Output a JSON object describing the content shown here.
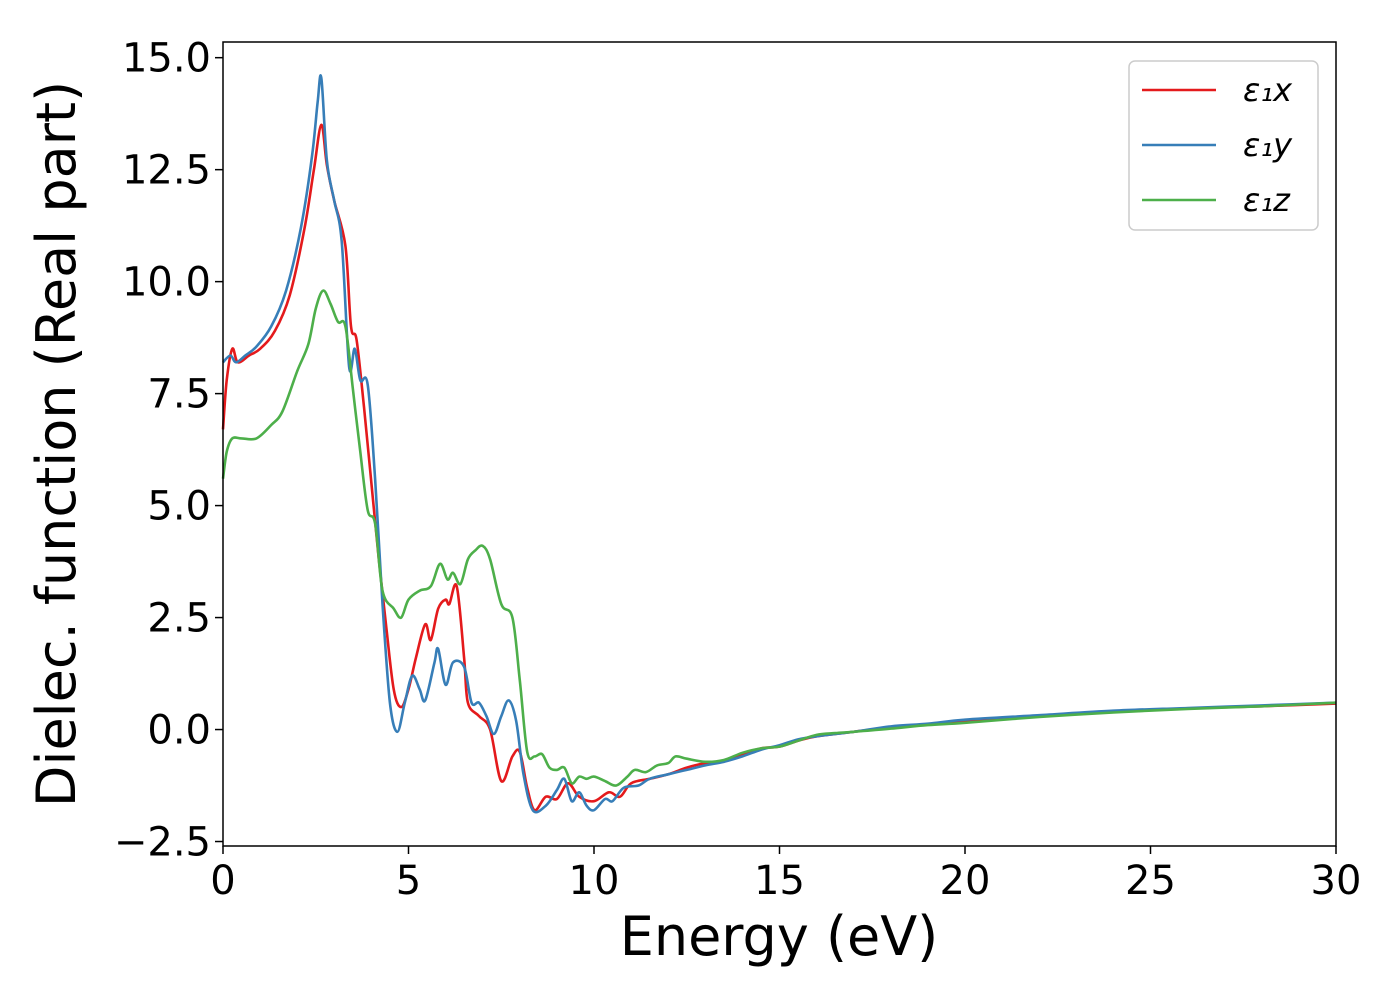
{
  "chart_data": {
    "type": "line",
    "xlabel": "Energy (eV)",
    "ylabel": "Dielec. function (Real part)",
    "xlim": [
      0,
      30
    ],
    "ylim": [
      -2.6,
      15.35
    ],
    "xticks": [
      0,
      5,
      10,
      15,
      20,
      25,
      30
    ],
    "xtick_labels": [
      "0",
      "5",
      "10",
      "15",
      "20",
      "25",
      "30"
    ],
    "yticks": [
      -2.5,
      0,
      2.5,
      5,
      7.5,
      10,
      12.5,
      15
    ],
    "ytick_labels": [
      "−2.5",
      "0.0",
      "2.5",
      "5.0",
      "7.5",
      "10.0",
      "12.5",
      "15.0"
    ],
    "grid": false,
    "legend_position": "top-right",
    "series": [
      {
        "name": "ε₁x",
        "color": "#e41a1c",
        "points": [
          [
            0,
            6.7
          ],
          [
            0.1,
            7.8
          ],
          [
            0.25,
            8.5
          ],
          [
            0.4,
            8.2
          ],
          [
            0.7,
            8.35
          ],
          [
            1.0,
            8.5
          ],
          [
            1.4,
            8.9
          ],
          [
            1.8,
            9.7
          ],
          [
            2.2,
            11.2
          ],
          [
            2.45,
            12.5
          ],
          [
            2.65,
            13.5
          ],
          [
            2.8,
            12.6
          ],
          [
            3.0,
            11.8
          ],
          [
            3.3,
            10.8
          ],
          [
            3.45,
            9.0
          ],
          [
            3.6,
            8.7
          ],
          [
            3.8,
            7.2
          ],
          [
            4.0,
            5.5
          ],
          [
            4.2,
            3.8
          ],
          [
            4.4,
            2.3
          ],
          [
            4.6,
            0.9
          ],
          [
            4.8,
            0.5
          ],
          [
            5.0,
            0.9
          ],
          [
            5.2,
            1.6
          ],
          [
            5.45,
            2.35
          ],
          [
            5.6,
            2.0
          ],
          [
            5.8,
            2.7
          ],
          [
            6.0,
            2.9
          ],
          [
            6.1,
            2.8
          ],
          [
            6.3,
            3.2
          ],
          [
            6.5,
            1.6
          ],
          [
            6.6,
            0.6
          ],
          [
            6.9,
            0.3
          ],
          [
            7.2,
            0.0
          ],
          [
            7.5,
            -1.15
          ],
          [
            7.8,
            -0.6
          ],
          [
            8.0,
            -0.5
          ],
          [
            8.2,
            -1.3
          ],
          [
            8.4,
            -1.8
          ],
          [
            8.7,
            -1.5
          ],
          [
            9.0,
            -1.55
          ],
          [
            9.3,
            -1.2
          ],
          [
            9.6,
            -1.5
          ],
          [
            10.0,
            -1.6
          ],
          [
            10.4,
            -1.4
          ],
          [
            10.7,
            -1.5
          ],
          [
            11.0,
            -1.2
          ],
          [
            11.5,
            -1.1
          ],
          [
            12.0,
            -1.0
          ],
          [
            12.5,
            -0.85
          ],
          [
            13.0,
            -0.75
          ],
          [
            13.5,
            -0.7
          ],
          [
            14.0,
            -0.55
          ],
          [
            14.5,
            -0.42
          ],
          [
            15.0,
            -0.38
          ],
          [
            15.5,
            -0.25
          ],
          [
            16.0,
            -0.15
          ],
          [
            17.0,
            -0.05
          ],
          [
            18.0,
            0.05
          ],
          [
            19.0,
            0.12
          ],
          [
            20.0,
            0.2
          ],
          [
            22.0,
            0.3
          ],
          [
            24.0,
            0.4
          ],
          [
            26.0,
            0.47
          ],
          [
            28.0,
            0.52
          ],
          [
            30.0,
            0.58
          ]
        ]
      },
      {
        "name": "ε₁y",
        "color": "#377eb8",
        "points": [
          [
            0,
            8.2
          ],
          [
            0.2,
            8.35
          ],
          [
            0.35,
            8.2
          ],
          [
            0.6,
            8.35
          ],
          [
            0.9,
            8.55
          ],
          [
            1.3,
            9.0
          ],
          [
            1.7,
            9.8
          ],
          [
            2.1,
            11.2
          ],
          [
            2.4,
            12.8
          ],
          [
            2.55,
            14.0
          ],
          [
            2.65,
            14.55
          ],
          [
            2.8,
            12.7
          ],
          [
            3.0,
            11.8
          ],
          [
            3.2,
            10.9
          ],
          [
            3.4,
            8.1
          ],
          [
            3.55,
            8.5
          ],
          [
            3.7,
            7.8
          ],
          [
            3.9,
            7.7
          ],
          [
            4.1,
            5.6
          ],
          [
            4.3,
            2.8
          ],
          [
            4.5,
            0.6
          ],
          [
            4.7,
            -0.05
          ],
          [
            4.9,
            0.6
          ],
          [
            5.1,
            1.2
          ],
          [
            5.3,
            0.9
          ],
          [
            5.45,
            0.65
          ],
          [
            5.7,
            1.5
          ],
          [
            5.8,
            1.8
          ],
          [
            6.0,
            1.0
          ],
          [
            6.2,
            1.5
          ],
          [
            6.5,
            1.4
          ],
          [
            6.7,
            0.6
          ],
          [
            6.9,
            0.6
          ],
          [
            7.1,
            0.3
          ],
          [
            7.3,
            -0.1
          ],
          [
            7.5,
            0.3
          ],
          [
            7.7,
            0.65
          ],
          [
            7.9,
            0.2
          ],
          [
            8.1,
            -1.0
          ],
          [
            8.35,
            -1.8
          ],
          [
            8.7,
            -1.7
          ],
          [
            9.0,
            -1.35
          ],
          [
            9.2,
            -1.1
          ],
          [
            9.4,
            -1.6
          ],
          [
            9.6,
            -1.4
          ],
          [
            9.8,
            -1.7
          ],
          [
            10.0,
            -1.8
          ],
          [
            10.3,
            -1.55
          ],
          [
            10.5,
            -1.6
          ],
          [
            10.8,
            -1.3
          ],
          [
            11.2,
            -1.25
          ],
          [
            11.5,
            -1.1
          ],
          [
            12.0,
            -1.0
          ],
          [
            12.5,
            -0.9
          ],
          [
            13.0,
            -0.8
          ],
          [
            13.5,
            -0.72
          ],
          [
            14.0,
            -0.6
          ],
          [
            14.5,
            -0.45
          ],
          [
            15.0,
            -0.35
          ],
          [
            15.5,
            -0.22
          ],
          [
            16.0,
            -0.15
          ],
          [
            17.0,
            -0.05
          ],
          [
            18.0,
            0.07
          ],
          [
            19.0,
            0.13
          ],
          [
            20.0,
            0.22
          ],
          [
            22.0,
            0.32
          ],
          [
            24.0,
            0.42
          ],
          [
            26.0,
            0.48
          ],
          [
            28.0,
            0.54
          ],
          [
            30.0,
            0.6
          ]
        ]
      },
      {
        "name": "ε₁z",
        "color": "#4daf4a",
        "points": [
          [
            0,
            5.6
          ],
          [
            0.1,
            6.2
          ],
          [
            0.25,
            6.5
          ],
          [
            0.5,
            6.5
          ],
          [
            0.9,
            6.5
          ],
          [
            1.3,
            6.8
          ],
          [
            1.6,
            7.1
          ],
          [
            2.0,
            8.0
          ],
          [
            2.3,
            8.6
          ],
          [
            2.5,
            9.4
          ],
          [
            2.7,
            9.8
          ],
          [
            2.9,
            9.5
          ],
          [
            3.1,
            9.1
          ],
          [
            3.3,
            9.0
          ],
          [
            3.5,
            7.6
          ],
          [
            3.7,
            6.2
          ],
          [
            3.9,
            4.9
          ],
          [
            4.1,
            4.6
          ],
          [
            4.3,
            3.1
          ],
          [
            4.6,
            2.7
          ],
          [
            4.8,
            2.5
          ],
          [
            5.0,
            2.9
          ],
          [
            5.3,
            3.1
          ],
          [
            5.6,
            3.2
          ],
          [
            5.85,
            3.7
          ],
          [
            6.05,
            3.35
          ],
          [
            6.2,
            3.5
          ],
          [
            6.4,
            3.25
          ],
          [
            6.6,
            3.8
          ],
          [
            6.8,
            4.0
          ],
          [
            7.0,
            4.1
          ],
          [
            7.2,
            3.8
          ],
          [
            7.5,
            2.8
          ],
          [
            7.8,
            2.5
          ],
          [
            8.0,
            1.1
          ],
          [
            8.2,
            -0.5
          ],
          [
            8.4,
            -0.6
          ],
          [
            8.6,
            -0.55
          ],
          [
            8.8,
            -0.85
          ],
          [
            9.0,
            -0.9
          ],
          [
            9.2,
            -0.85
          ],
          [
            9.4,
            -1.2
          ],
          [
            9.6,
            -1.05
          ],
          [
            9.8,
            -1.1
          ],
          [
            10.0,
            -1.05
          ],
          [
            10.3,
            -1.15
          ],
          [
            10.6,
            -1.25
          ],
          [
            10.9,
            -1.05
          ],
          [
            11.1,
            -0.9
          ],
          [
            11.4,
            -0.95
          ],
          [
            11.7,
            -0.8
          ],
          [
            12.0,
            -0.75
          ],
          [
            12.2,
            -0.6
          ],
          [
            12.5,
            -0.65
          ],
          [
            13.0,
            -0.72
          ],
          [
            13.5,
            -0.68
          ],
          [
            14.0,
            -0.52
          ],
          [
            14.5,
            -0.42
          ],
          [
            15.0,
            -0.38
          ],
          [
            15.5,
            -0.25
          ],
          [
            16.0,
            -0.12
          ],
          [
            16.5,
            -0.08
          ],
          [
            17.0,
            -0.05
          ],
          [
            18.0,
            0.02
          ],
          [
            19.0,
            0.1
          ],
          [
            20.0,
            0.15
          ],
          [
            22.0,
            0.28
          ],
          [
            24.0,
            0.38
          ],
          [
            26.0,
            0.46
          ],
          [
            28.0,
            0.52
          ],
          [
            30.0,
            0.6
          ]
        ]
      }
    ]
  }
}
